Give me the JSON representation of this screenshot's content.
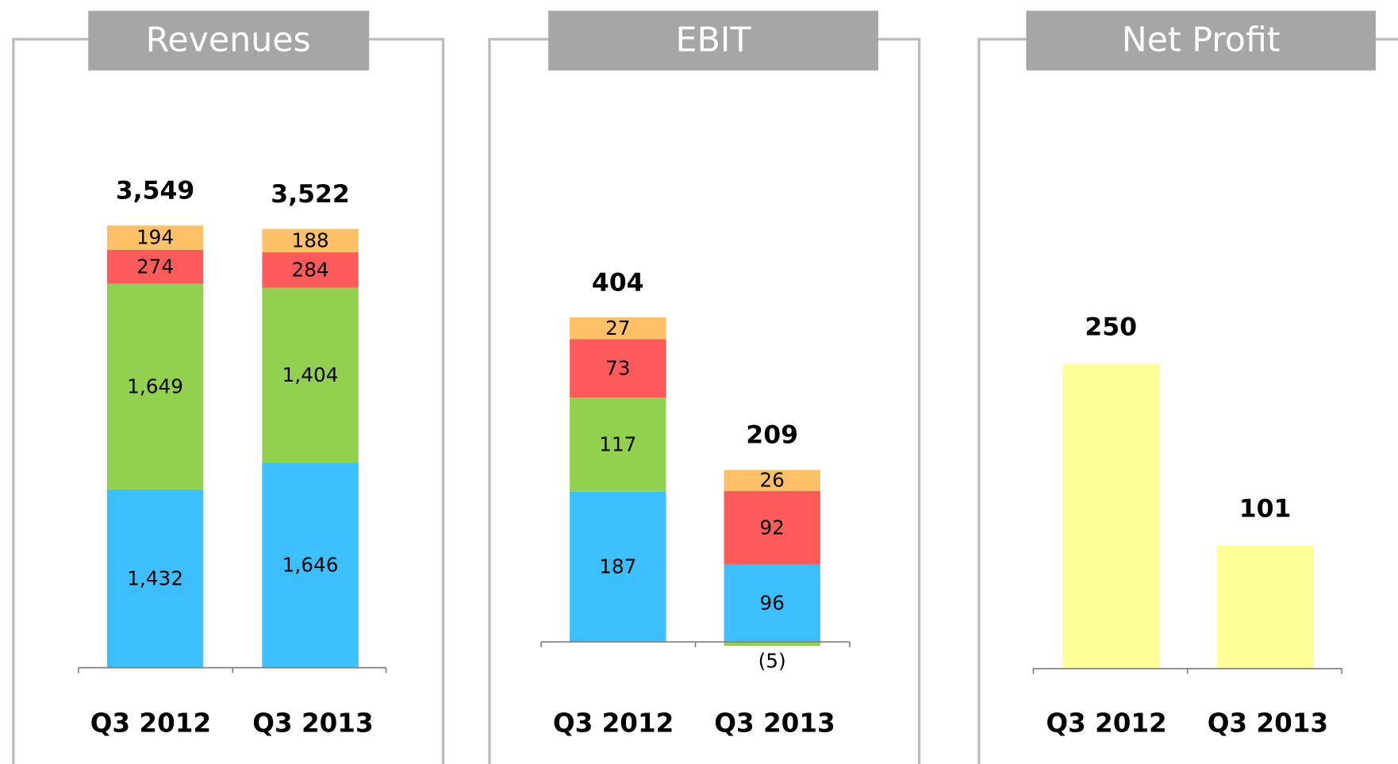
{
  "chart_data": [
    {
      "type": "stacked-bar",
      "title": "Revenues",
      "categories": [
        "Q3 2012",
        "Q3 2013"
      ],
      "series": [
        {
          "color": "#3dbffd",
          "values": [
            1432,
            1646
          ],
          "value_labels": [
            "1,432",
            "1,646"
          ]
        },
        {
          "color": "#92d050",
          "values": [
            1649,
            1404
          ],
          "value_labels": [
            "1,649",
            "1,404"
          ]
        },
        {
          "color": "#ff5b5b",
          "values": [
            274,
            284
          ]
        },
        {
          "color": "#ffc067",
          "values": [
            194,
            188
          ]
        }
      ],
      "totals": [
        3549,
        3522
      ],
      "total_labels": [
        "3,549",
        "3,522"
      ],
      "ylim": [
        0,
        4000
      ]
    },
    {
      "type": "stacked-bar",
      "title": "EBIT",
      "categories": [
        "Q3 2012",
        "Q3 2013"
      ],
      "series": [
        {
          "color": "#3dbffd",
          "values": [
            187,
            96
          ]
        },
        {
          "color": "#92d050",
          "values": [
            117,
            -5
          ],
          "value_labels": [
            "117",
            "(5)"
          ]
        },
        {
          "color": "#ff5b5b",
          "values": [
            73,
            92
          ]
        },
        {
          "color": "#ffc067",
          "values": [
            27,
            26
          ]
        }
      ],
      "totals": [
        404,
        209
      ],
      "ylim": [
        -50,
        500
      ]
    },
    {
      "type": "bar",
      "title": "Net Profit",
      "categories": [
        "Q3 2012",
        "Q3 2013"
      ],
      "values": [
        250,
        101
      ],
      "color": "#ffff99",
      "ylim": [
        0,
        300
      ]
    }
  ]
}
